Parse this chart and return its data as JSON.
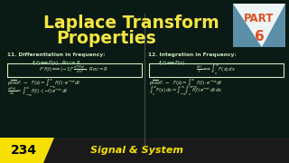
{
  "bg_color": "#0a1a14",
  "title_line1": "Laplace Transform",
  "title_line2": "Properties",
  "title_color": "#f5e642",
  "part_label": "PART",
  "part_number": "6",
  "section11_title": "11. Differentiation in frequency:",
  "section12_title": "12. Integration in Frequency:",
  "section_title_color": "#c8e8c0",
  "formula_text_color": "#c8f0c0",
  "box_color": "#c8f0c0",
  "bottom_bar_color": "#f5e000",
  "bottom_number": "234",
  "bottom_text": "Signal & System",
  "bottom_bg": "#1a1a1a"
}
